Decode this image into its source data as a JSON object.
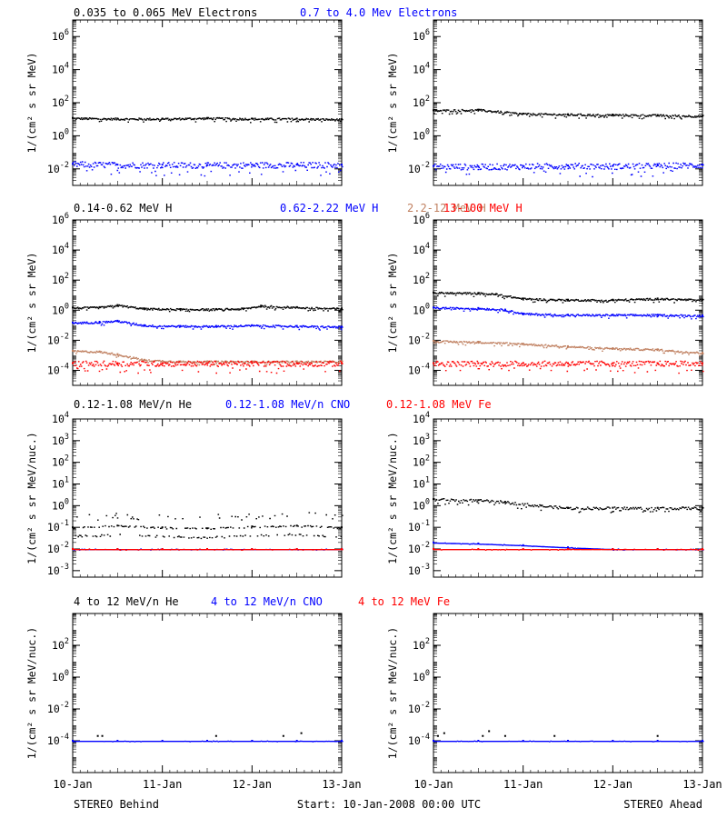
{
  "colors": {
    "black": "#000000",
    "blue": "#0000ff",
    "tan": "#c08060",
    "red": "#ff0000",
    "axis": "#000000",
    "background": "#ffffff"
  },
  "rows": [
    {
      "id": "electrons",
      "legend": [
        {
          "text": "0.035 to 0.065 MeV Electrons",
          "color": "#000000"
        },
        {
          "text": "0.7 to 4.0 Mev Electrons",
          "color": "#0000ff"
        }
      ]
    },
    {
      "id": "protons",
      "legend": [
        {
          "text": "0.14-0.62 MeV H",
          "color": "#000000"
        },
        {
          "text": "0.62-2.22 MeV H",
          "color": "#0000ff"
        },
        {
          "text": "2.2-12 MeV H",
          "color": "#c08060"
        },
        {
          "text": "13-100 MeV H",
          "color": "#ff0000"
        }
      ]
    },
    {
      "id": "ions-low",
      "legend": [
        {
          "text": "0.12-1.08 MeV/n He",
          "color": "#000000"
        },
        {
          "text": "0.12-1.08 MeV/n CNO",
          "color": "#0000ff"
        },
        {
          "text": "0.12-1.08 MeV Fe",
          "color": "#ff0000"
        }
      ]
    },
    {
      "id": "ions-high",
      "legend": [
        {
          "text": "4 to 12 MeV/n He",
          "color": "#000000"
        },
        {
          "text": "4 to 12 MeV/n CNO",
          "color": "#0000ff"
        },
        {
          "text": "4 to 12 MeV Fe",
          "color": "#ff0000"
        }
      ]
    }
  ],
  "x_ticks": [
    "10-Jan",
    "11-Jan",
    "12-Jan",
    "13-Jan"
  ],
  "footer": {
    "left": "STEREO Behind",
    "center": "Start: 10-Jan-2008 00:00 UTC",
    "right": "STEREO Ahead"
  },
  "chart_data": [
    {
      "type": "scatter",
      "panel": "electrons-behind",
      "spacecraft": "STEREO Behind",
      "ylabel": "1/(cm² s sr MeV)",
      "yscale": "log",
      "ylim_exp": [
        -3,
        7
      ],
      "y_ticks": [
        "10^-2",
        "10^0",
        "10^2",
        "10^4",
        "10^6"
      ],
      "x_days": [
        0,
        3
      ],
      "series": [
        {
          "name": "0.035 to 0.065 MeV Electrons",
          "color": "#000000",
          "x": [
            0,
            0.5,
            1,
            1.5,
            2,
            2.5,
            3
          ],
          "y": [
            12,
            11,
            11,
            12,
            11,
            11,
            10
          ]
        },
        {
          "name": "0.7 to 4.0 Mev Electrons",
          "color": "#0000ff",
          "x": [
            0,
            0.5,
            1,
            1.5,
            2,
            2.5,
            3
          ],
          "y": [
            0.02,
            0.018,
            0.018,
            0.017,
            0.018,
            0.018,
            0.018
          ]
        }
      ]
    },
    {
      "type": "scatter",
      "panel": "electrons-ahead",
      "spacecraft": "STEREO Ahead",
      "ylabel": "1/(cm² s sr MeV)",
      "yscale": "log",
      "ylim_exp": [
        -3,
        7
      ],
      "y_ticks": [
        "10^-2",
        "10^0",
        "10^2",
        "10^4",
        "10^6"
      ],
      "x_days": [
        0,
        3
      ],
      "series": [
        {
          "name": "0.035 to 0.065 MeV Electrons",
          "color": "#000000",
          "x": [
            0,
            0.5,
            1,
            1.5,
            2,
            2.5,
            3
          ],
          "y": [
            35,
            38,
            22,
            20,
            19,
            18,
            16
          ]
        },
        {
          "name": "0.7 to 4.0 Mev Electrons",
          "color": "#0000ff",
          "x": [
            0,
            0.5,
            1,
            1.5,
            2,
            2.5,
            3
          ],
          "y": [
            0.015,
            0.014,
            0.015,
            0.016,
            0.015,
            0.016,
            0.018
          ]
        }
      ]
    },
    {
      "type": "scatter",
      "panel": "protons-behind",
      "spacecraft": "STEREO Behind",
      "ylabel": "1/(cm² s sr MeV)",
      "yscale": "log",
      "ylim_exp": [
        -5,
        6
      ],
      "y_ticks": [
        "10^-4",
        "10^-2",
        "10^0",
        "10^2",
        "10^4",
        "10^6"
      ],
      "x_days": [
        0,
        3
      ],
      "series": [
        {
          "name": "0.14-0.62 MeV H",
          "color": "#000000",
          "x": [
            0,
            0.3,
            0.5,
            0.8,
            1.2,
            1.6,
            1.9,
            2.1,
            2.5,
            3
          ],
          "y": [
            1.5,
            1.6,
            2.2,
            1.3,
            1.2,
            1.2,
            1.3,
            2.0,
            1.6,
            1.3
          ]
        },
        {
          "name": "0.62-2.22 MeV H",
          "color": "#0000ff",
          "x": [
            0,
            0.3,
            0.5,
            0.8,
            1.2,
            1.6,
            2.0,
            2.5,
            3
          ],
          "y": [
            0.15,
            0.17,
            0.2,
            0.1,
            0.09,
            0.09,
            0.1,
            0.09,
            0.08
          ]
        },
        {
          "name": "2.2-12 MeV H",
          "color": "#c08060",
          "x": [
            0,
            0.3,
            0.5,
            0.8,
            1.2,
            1.6,
            2.0,
            2.5,
            3
          ],
          "y": [
            0.002,
            0.0018,
            0.0012,
            0.0005,
            0.0004,
            0.0004,
            0.0004,
            0.0004,
            0.0004
          ]
        },
        {
          "name": "13-100 MeV H",
          "color": "#ff0000",
          "x": [
            0,
            0.5,
            1,
            1.5,
            2,
            2.5,
            3
          ],
          "y": [
            0.0003,
            0.0003,
            0.0003,
            0.0003,
            0.0003,
            0.0003,
            0.0003
          ]
        }
      ]
    },
    {
      "type": "scatter",
      "panel": "protons-ahead",
      "spacecraft": "STEREO Ahead",
      "ylabel": "1/(cm² s sr MeV)",
      "yscale": "log",
      "ylim_exp": [
        -5,
        6
      ],
      "y_ticks": [
        "10^-4",
        "10^-2",
        "10^0",
        "10^2",
        "10^4",
        "10^6"
      ],
      "x_days": [
        0,
        3
      ],
      "series": [
        {
          "name": "0.14-0.62 MeV H",
          "color": "#000000",
          "x": [
            0,
            0.5,
            0.7,
            1.0,
            1.5,
            2,
            2.5,
            3
          ],
          "y": [
            15,
            14,
            12,
            6,
            5,
            5,
            6,
            5
          ]
        },
        {
          "name": "0.62-2.22 MeV H",
          "color": "#0000ff",
          "x": [
            0,
            0.5,
            0.8,
            1.0,
            1.5,
            2,
            2.5,
            3
          ],
          "y": [
            1.5,
            1.4,
            1.1,
            0.6,
            0.5,
            0.5,
            0.5,
            0.45
          ]
        },
        {
          "name": "2.2-12 MeV H",
          "color": "#c08060",
          "x": [
            0,
            0.5,
            1.0,
            1.5,
            2,
            2.5,
            3
          ],
          "y": [
            0.009,
            0.008,
            0.006,
            0.004,
            0.003,
            0.0025,
            0.0015
          ]
        },
        {
          "name": "13-100 MeV H",
          "color": "#ff0000",
          "x": [
            0,
            0.5,
            1,
            1.5,
            2,
            2.5,
            3
          ],
          "y": [
            0.0003,
            0.0003,
            0.0003,
            0.0003,
            0.0003,
            0.0003,
            0.0003
          ]
        }
      ]
    },
    {
      "type": "scatter",
      "panel": "ions-low-behind",
      "spacecraft": "STEREO Behind",
      "ylabel": "1/(cm² s sr MeV/nuc.)",
      "yscale": "log",
      "ylim_exp": [
        -3.3,
        4
      ],
      "y_ticks": [
        "10^-3",
        "10^-2",
        "10^-1",
        "10^0",
        "10^1",
        "10^2",
        "10^3",
        "10^4"
      ],
      "x_days": [
        0,
        3
      ],
      "series": [
        {
          "name": "0.12-1.08 MeV/n He",
          "color": "#000000",
          "x": [
            0,
            0.5,
            1,
            1.5,
            2,
            2.5,
            3
          ],
          "y": [
            0.1,
            0.12,
            0.1,
            0.09,
            0.11,
            0.12,
            0.1
          ]
        },
        {
          "name": "0.12-1.08 MeV/n CNO",
          "color": "#0000ff",
          "x": [
            0,
            0.5,
            1,
            1.5,
            2,
            2.5,
            3
          ],
          "y": [
            0.01,
            0.01,
            0.01,
            0.01,
            0.01,
            0.01,
            0.01
          ]
        },
        {
          "name": "0.12-1.08 MeV Fe",
          "color": "#ff0000",
          "x": [
            0,
            0.5,
            1,
            1.5,
            2,
            2.5,
            3
          ],
          "y": [
            0.01,
            0.01,
            0.01,
            0.01,
            0.01,
            0.01,
            0.01
          ]
        }
      ]
    },
    {
      "type": "scatter",
      "panel": "ions-low-ahead",
      "spacecraft": "STEREO Ahead",
      "ylabel": "1/(cm² s sr MeV/nuc.)",
      "yscale": "log",
      "ylim_exp": [
        -3.3,
        4
      ],
      "y_ticks": [
        "10^-3",
        "10^-2",
        "10^-1",
        "10^0",
        "10^1",
        "10^2",
        "10^3",
        "10^4"
      ],
      "x_days": [
        0,
        3
      ],
      "series": [
        {
          "name": "0.12-1.08 MeV/n He",
          "color": "#000000",
          "x": [
            0,
            0.5,
            0.8,
            1.2,
            1.5,
            2,
            2.5,
            3
          ],
          "y": [
            2.0,
            1.8,
            1.5,
            1.0,
            0.8,
            0.8,
            0.8,
            0.8
          ]
        },
        {
          "name": "0.12-1.08 MeV/n CNO",
          "color": "#0000ff",
          "x": [
            0,
            0.5,
            1,
            1.5,
            2,
            2.5,
            3
          ],
          "y": [
            0.02,
            0.018,
            0.015,
            0.012,
            0.01,
            0.01,
            0.01
          ]
        },
        {
          "name": "0.12-1.08 MeV Fe",
          "color": "#ff0000",
          "x": [
            0,
            0.5,
            1,
            1.5,
            2,
            2.5,
            3
          ],
          "y": [
            0.01,
            0.01,
            0.01,
            0.01,
            0.01,
            0.01,
            0.01
          ]
        }
      ]
    },
    {
      "type": "scatter",
      "panel": "ions-high-behind",
      "spacecraft": "STEREO Behind",
      "ylabel": "1/(cm² s sr MeV/nuc.)",
      "yscale": "log",
      "ylim_exp": [
        -6,
        4
      ],
      "y_ticks": [
        "10^-4",
        "10^-2",
        "10^0",
        "10^2"
      ],
      "x_days": [
        0,
        3
      ],
      "series": [
        {
          "name": "4 to 12 MeV/n He",
          "color": "#000000",
          "x": [
            0.28,
            0.33,
            1.6,
            2.35,
            2.55
          ],
          "y": [
            0.0002,
            0.0002,
            0.0002,
            0.0002,
            0.0003
          ]
        },
        {
          "name": "4 to 12 MeV/n CNO",
          "color": "#0000ff",
          "x": [
            0,
            0.5,
            1,
            1.5,
            2,
            2.5,
            3
          ],
          "y": [
            0.0001,
            0.0001,
            0.0001,
            0.0001,
            0.0001,
            0.0001,
            0.0001
          ]
        },
        {
          "name": "4 to 12 MeV Fe",
          "color": "#ff0000",
          "x": [],
          "y": []
        }
      ]
    },
    {
      "type": "scatter",
      "panel": "ions-high-ahead",
      "spacecraft": "STEREO Ahead",
      "ylabel": "1/(cm² s sr MeV/nuc.)",
      "yscale": "log",
      "ylim_exp": [
        -6,
        4
      ],
      "y_ticks": [
        "10^-4",
        "10^-2",
        "10^0",
        "10^2"
      ],
      "x_days": [
        0,
        3
      ],
      "series": [
        {
          "name": "4 to 12 MeV/n He",
          "color": "#000000",
          "x": [
            0.05,
            0.12,
            0.55,
            0.62,
            0.8,
            1.35,
            2.5
          ],
          "y": [
            0.0002,
            0.0003,
            0.0002,
            0.0004,
            0.0002,
            0.0002,
            0.0002
          ]
        },
        {
          "name": "4 to 12 MeV/n CNO",
          "color": "#0000ff",
          "x": [
            0,
            0.5,
            1,
            1.5,
            2,
            2.5,
            3
          ],
          "y": [
            0.0001,
            0.0001,
            0.0001,
            0.0001,
            0.0001,
            0.0001,
            0.0001
          ]
        },
        {
          "name": "4 to 12 MeV Fe",
          "color": "#ff0000",
          "x": [],
          "y": []
        }
      ]
    }
  ]
}
